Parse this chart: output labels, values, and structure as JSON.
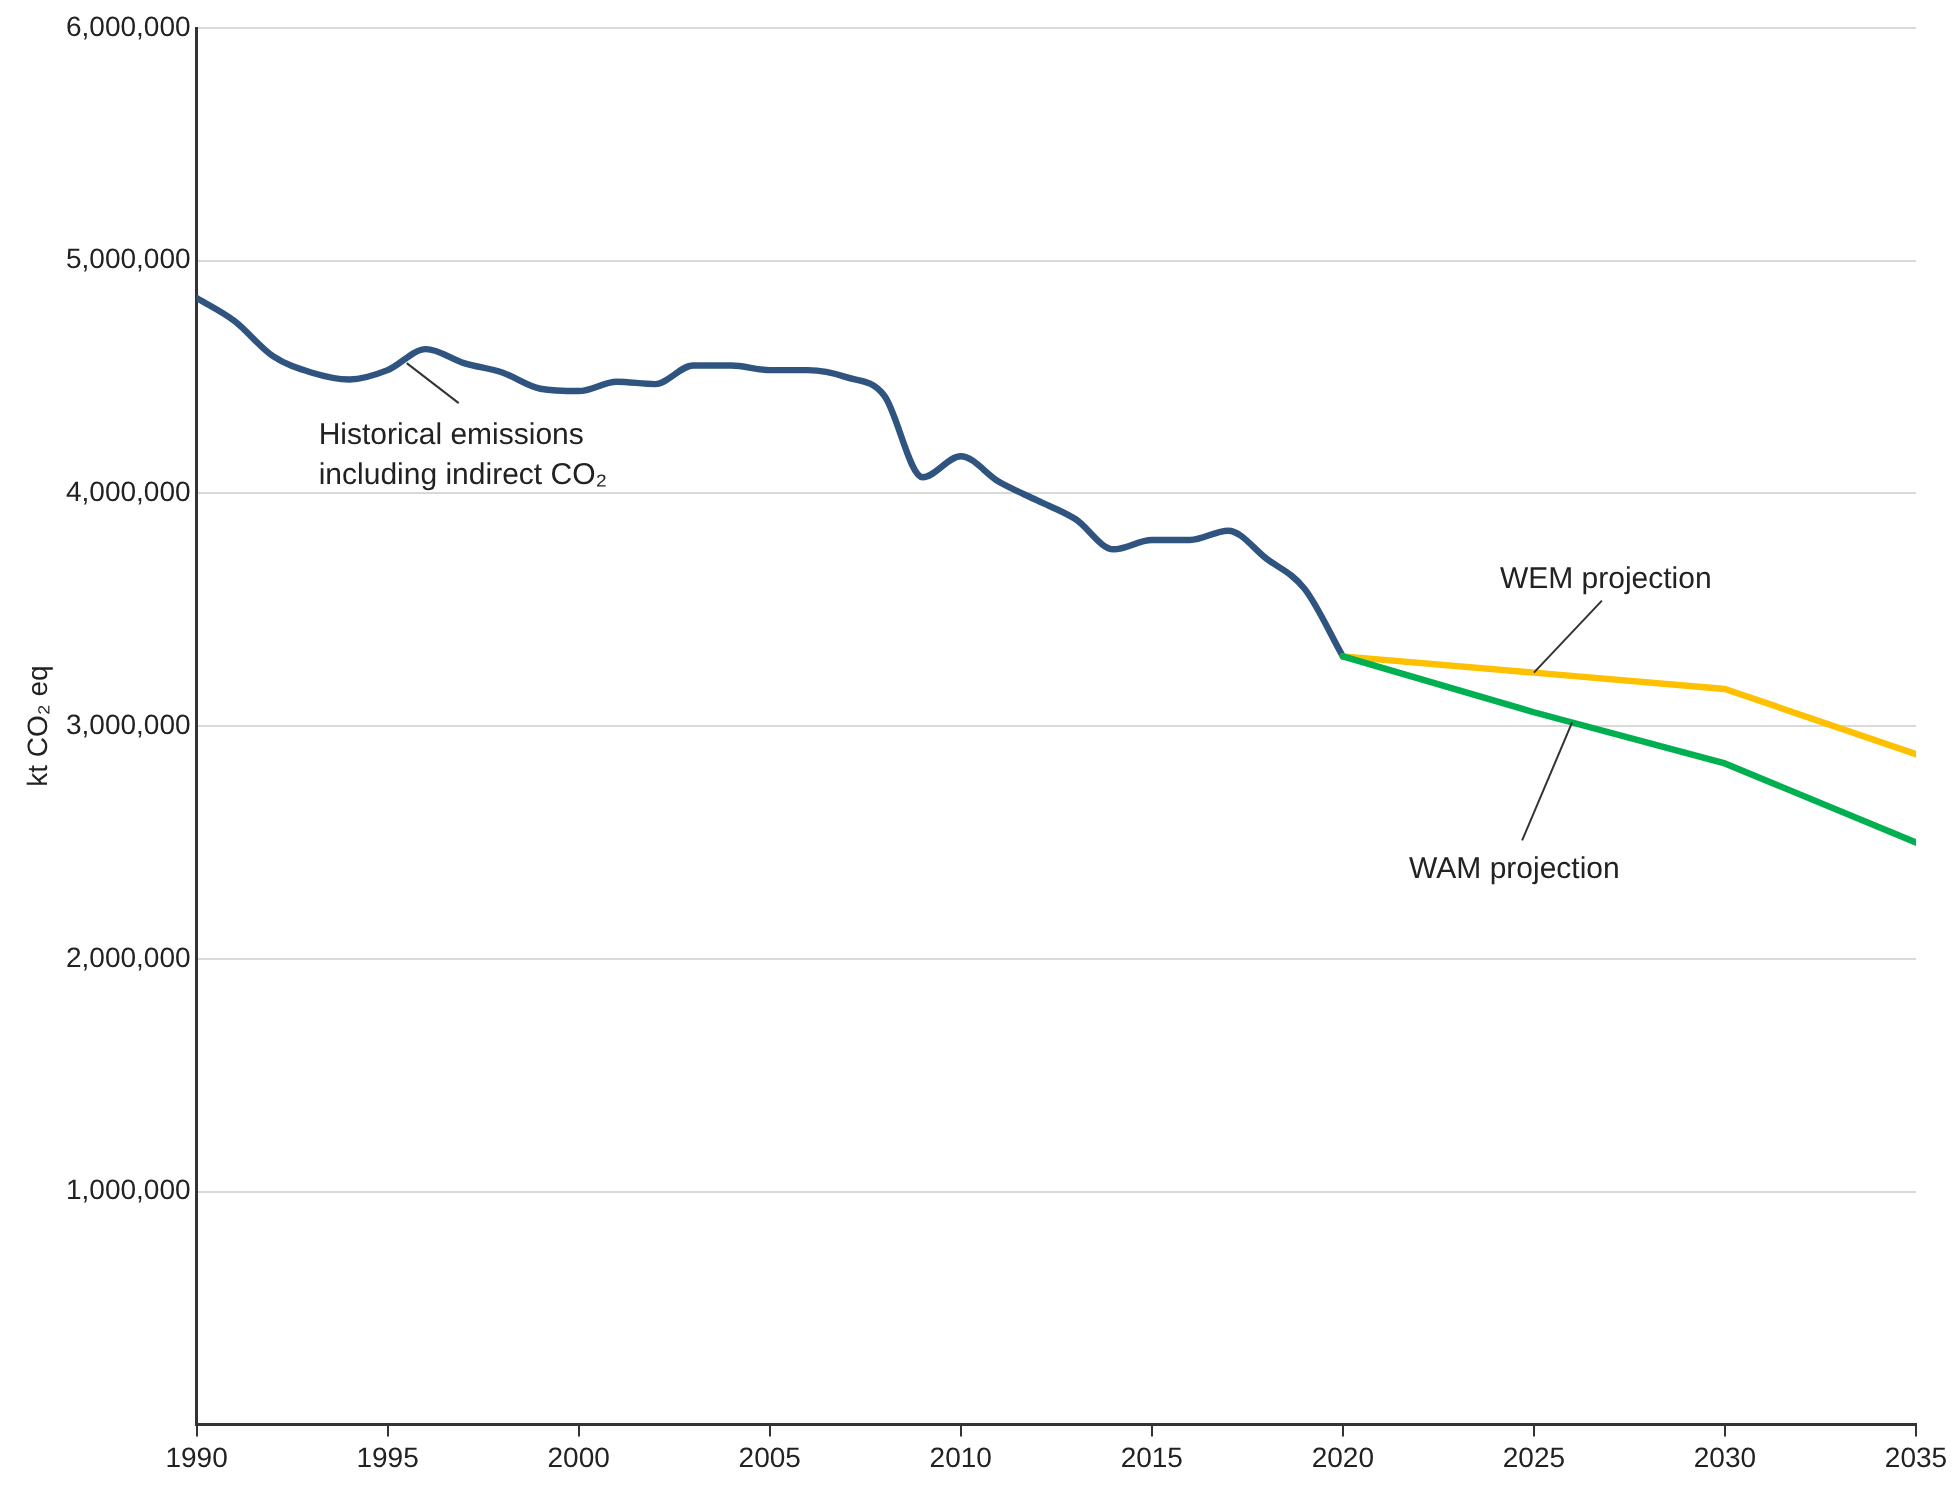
{
  "chart_data": {
    "type": "line",
    "ylabel": "kt CO₂ eq",
    "xlim": [
      1990,
      2035
    ],
    "xticks": [
      1990,
      1995,
      2000,
      2005,
      2010,
      2015,
      2020,
      2025,
      2030,
      2035
    ],
    "ylim": [
      0,
      6000000
    ],
    "yticks": [
      {
        "value": 0,
        "label": null
      },
      {
        "value": 1000000,
        "label": "1,000,000"
      },
      {
        "value": 2000000,
        "label": "2,000,000"
      },
      {
        "value": 3000000,
        "label": "3,000,000"
      },
      {
        "value": 4000000,
        "label": "4,000,000"
      },
      {
        "value": 5000000,
        "label": "5,000,000"
      },
      {
        "value": 6000000,
        "label": "6,000,000"
      }
    ],
    "grid": "y",
    "legend": false,
    "marker": "none",
    "series": [
      {
        "color": "#2f5480",
        "x": [
          1990,
          1991,
          1992,
          1993,
          1994,
          1995,
          1996,
          1997,
          1998,
          1999,
          2000,
          2001,
          2002,
          2003,
          2004,
          2005,
          2006,
          2007,
          2008,
          2009,
          2010,
          2011,
          2012,
          2013,
          2014,
          2015,
          2016,
          2017,
          2018,
          2019,
          2020
        ],
        "values": [
          4840000,
          4740000,
          4590000,
          4520000,
          4490000,
          4530000,
          4620000,
          4560000,
          4520000,
          4450000,
          4440000,
          4480000,
          4470000,
          4550000,
          4550000,
          4530000,
          4530000,
          4500000,
          4420000,
          4070000,
          4160000,
          4050000,
          3970000,
          3890000,
          3760000,
          3800000,
          3800000,
          3840000,
          3720000,
          3590000,
          3300000
        ]
      },
      {
        "color": "#ffc000",
        "x": [
          2020,
          2025,
          2030,
          2035
        ],
        "values": [
          3300000,
          3230000,
          3160000,
          2880000
        ]
      },
      {
        "color": "#00b050",
        "x": [
          2020,
          2025,
          2030,
          2035
        ],
        "values": [
          3300000,
          3060000,
          2840000,
          2500000
        ]
      }
    ],
    "annotations": [
      {
        "text": "Historical emissions\nincluding indirect CO₂",
        "x": 1995.5,
        "y": 4560000
      },
      {
        "text": "WEM projection",
        "x": 2025,
        "y": 3230000
      },
      {
        "text": "WAM projection",
        "x": 2026,
        "y": 3016000
      }
    ]
  }
}
